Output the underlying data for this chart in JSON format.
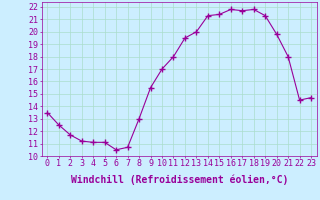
{
  "x": [
    0,
    1,
    2,
    3,
    4,
    5,
    6,
    7,
    8,
    9,
    10,
    11,
    12,
    13,
    14,
    15,
    16,
    17,
    18,
    19,
    20,
    21,
    22,
    23
  ],
  "y": [
    13.5,
    12.5,
    11.7,
    11.2,
    11.1,
    11.1,
    10.5,
    10.7,
    13.0,
    15.5,
    17.0,
    18.0,
    19.5,
    20.0,
    21.3,
    21.4,
    21.8,
    21.7,
    21.8,
    21.3,
    19.8,
    18.0,
    14.5,
    14.7
  ],
  "line_color": "#990099",
  "marker": "+",
  "marker_size": 4,
  "bg_color": "#cceeff",
  "grid_color": "#aaddcc",
  "xlabel": "Windchill (Refroidissement éolien,°C)",
  "xlabel_fontsize": 7,
  "tick_fontsize": 6,
  "xlim": [
    -0.5,
    23.5
  ],
  "ylim": [
    10,
    22.4
  ],
  "yticks": [
    10,
    11,
    12,
    13,
    14,
    15,
    16,
    17,
    18,
    19,
    20,
    21,
    22
  ],
  "xticks": [
    0,
    1,
    2,
    3,
    4,
    5,
    6,
    7,
    8,
    9,
    10,
    11,
    12,
    13,
    14,
    15,
    16,
    17,
    18,
    19,
    20,
    21,
    22,
    23
  ]
}
